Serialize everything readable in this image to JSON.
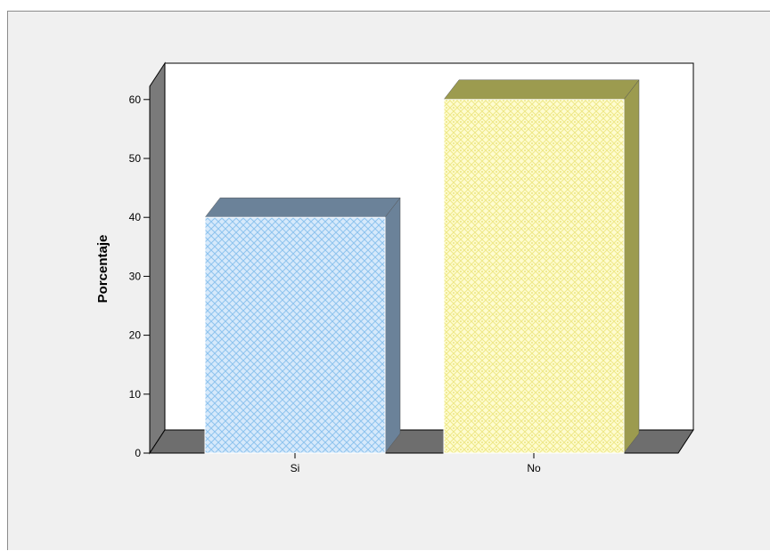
{
  "chart_data": {
    "type": "bar",
    "title": "",
    "xlabel": "",
    "ylabel": "Porcentaje",
    "categories": [
      "Si",
      "No"
    ],
    "values": [
      40,
      60
    ],
    "ylim": [
      0,
      63
    ],
    "yticks": [
      0,
      10,
      20,
      30,
      40,
      50,
      60
    ],
    "three_d": true,
    "grid": false,
    "legend": "none",
    "bar_styles": [
      {
        "fill": "#d6e9fb",
        "hatch": "#8ec3ee",
        "side": "#6b8299",
        "top": "#6b8299",
        "pattern": "crosshatch"
      },
      {
        "fill": "#fefcd0",
        "hatch": "#eee886",
        "side": "#9c9b4f",
        "top": "#9c9b4f",
        "pattern": "diamond-dots"
      }
    ],
    "colors": {
      "background": "#f0f0f0",
      "plot_back": "#ffffff",
      "plot_side": "#7a7a7a",
      "floor": "#6e6e6e"
    }
  }
}
